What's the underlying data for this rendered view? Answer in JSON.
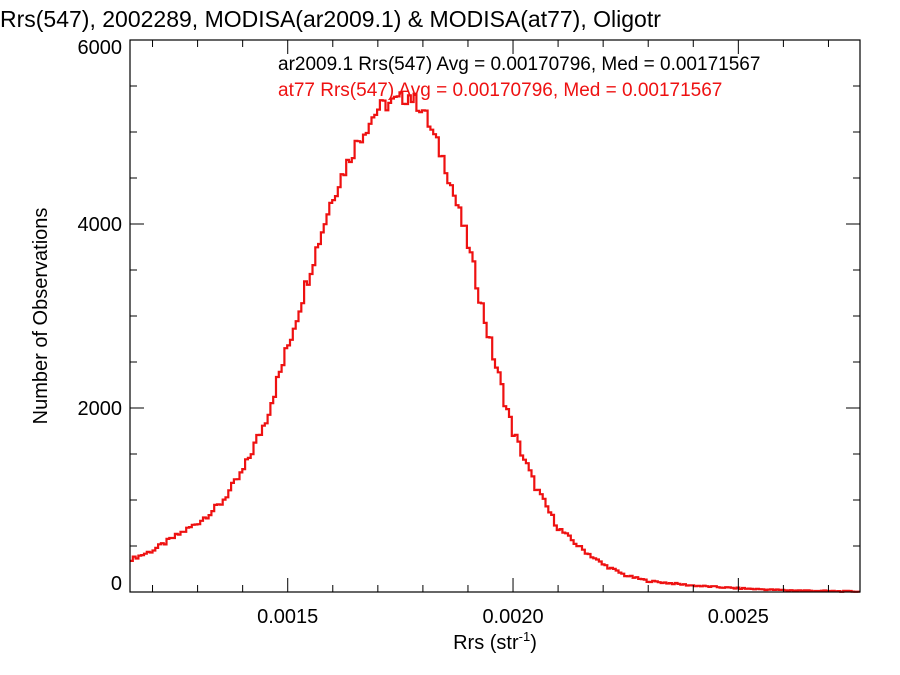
{
  "chart_data": {
    "type": "line",
    "title": "Rrs(547), 2002289, MODISA(ar2009.1) & MODISA(at77), Oligotr",
    "xlabel": "Rrs (str",
    "xlabel_sup": "-1",
    "xlabel_close": ")",
    "ylabel": "Number of Observations",
    "xlim": [
      0.00115,
      0.00277
    ],
    "ylim": [
      0,
      6000
    ],
    "x_ticks": [
      {
        "value": 0.0015,
        "label": "0.0015"
      },
      {
        "value": 0.002,
        "label": "0.0020"
      },
      {
        "value": 0.0025,
        "label": "0.0025"
      }
    ],
    "x_minor_ticks": [
      0.0012,
      0.0013,
      0.0014,
      0.0016,
      0.0017,
      0.0018,
      0.0019,
      0.0021,
      0.0022,
      0.0023,
      0.0024,
      0.0026,
      0.0027
    ],
    "y_ticks": [
      {
        "value": 0,
        "label": "0"
      },
      {
        "value": 2000,
        "label": "2000"
      },
      {
        "value": 4000,
        "label": "4000"
      },
      {
        "value": 6000,
        "label": "6000"
      }
    ],
    "y_minor_ticks": [
      500,
      1000,
      1500,
      2500,
      3000,
      3500,
      4500,
      5000,
      5500
    ],
    "annotations": [
      {
        "text": "ar2009.1 Rrs(547) Avg = 0.00170796, Med = 0.00171567",
        "color": "#000000"
      },
      {
        "text": "at77 Rrs(547) Avg = 0.00170796, Med = 0.00171567",
        "color": "#ee1111"
      }
    ],
    "series": [
      {
        "color": "#ee1111",
        "x": [
          0.00115,
          0.0012,
          0.00125,
          0.0013,
          0.00135,
          0.0014,
          0.00145,
          0.0015,
          0.00155,
          0.0016,
          0.00165,
          0.0017,
          0.00172,
          0.00175,
          0.00177,
          0.0018,
          0.00185,
          0.0019,
          0.00195,
          0.002,
          0.00205,
          0.0021,
          0.00215,
          0.0022,
          0.00225,
          0.0023,
          0.0024,
          0.0025,
          0.0026,
          0.0027,
          0.00277
        ],
        "y": [
          350,
          450,
          600,
          750,
          950,
          1300,
          1850,
          2650,
          3500,
          4300,
          4850,
          5250,
          5300,
          5350,
          5400,
          5250,
          4650,
          3800,
          2700,
          1750,
          1150,
          700,
          480,
          300,
          180,
          120,
          70,
          40,
          20,
          10,
          5
        ]
      }
    ]
  }
}
